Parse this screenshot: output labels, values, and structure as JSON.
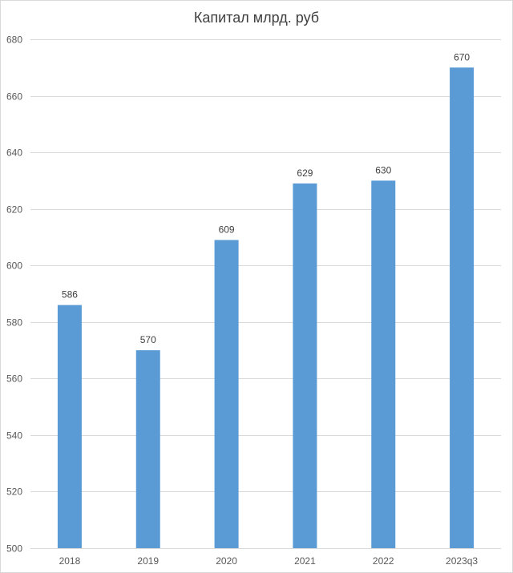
{
  "chart_data": {
    "type": "bar",
    "title": "Капитал млрд. руб",
    "xlabel": "",
    "ylabel": "",
    "categories": [
      "2018",
      "2019",
      "2020",
      "2021",
      "2022",
      "2023q3"
    ],
    "values": [
      586,
      570,
      609,
      629,
      630,
      670
    ],
    "data_labels": [
      "586",
      "570",
      "609",
      "629",
      "630",
      "670"
    ],
    "ylim": [
      500,
      680
    ],
    "y_ticks": [
      500,
      520,
      540,
      560,
      580,
      600,
      620,
      640,
      660,
      680
    ],
    "grid": true,
    "legend": "none",
    "bar_color": "#5B9BD5",
    "grid_color": "#D9D9D9"
  }
}
